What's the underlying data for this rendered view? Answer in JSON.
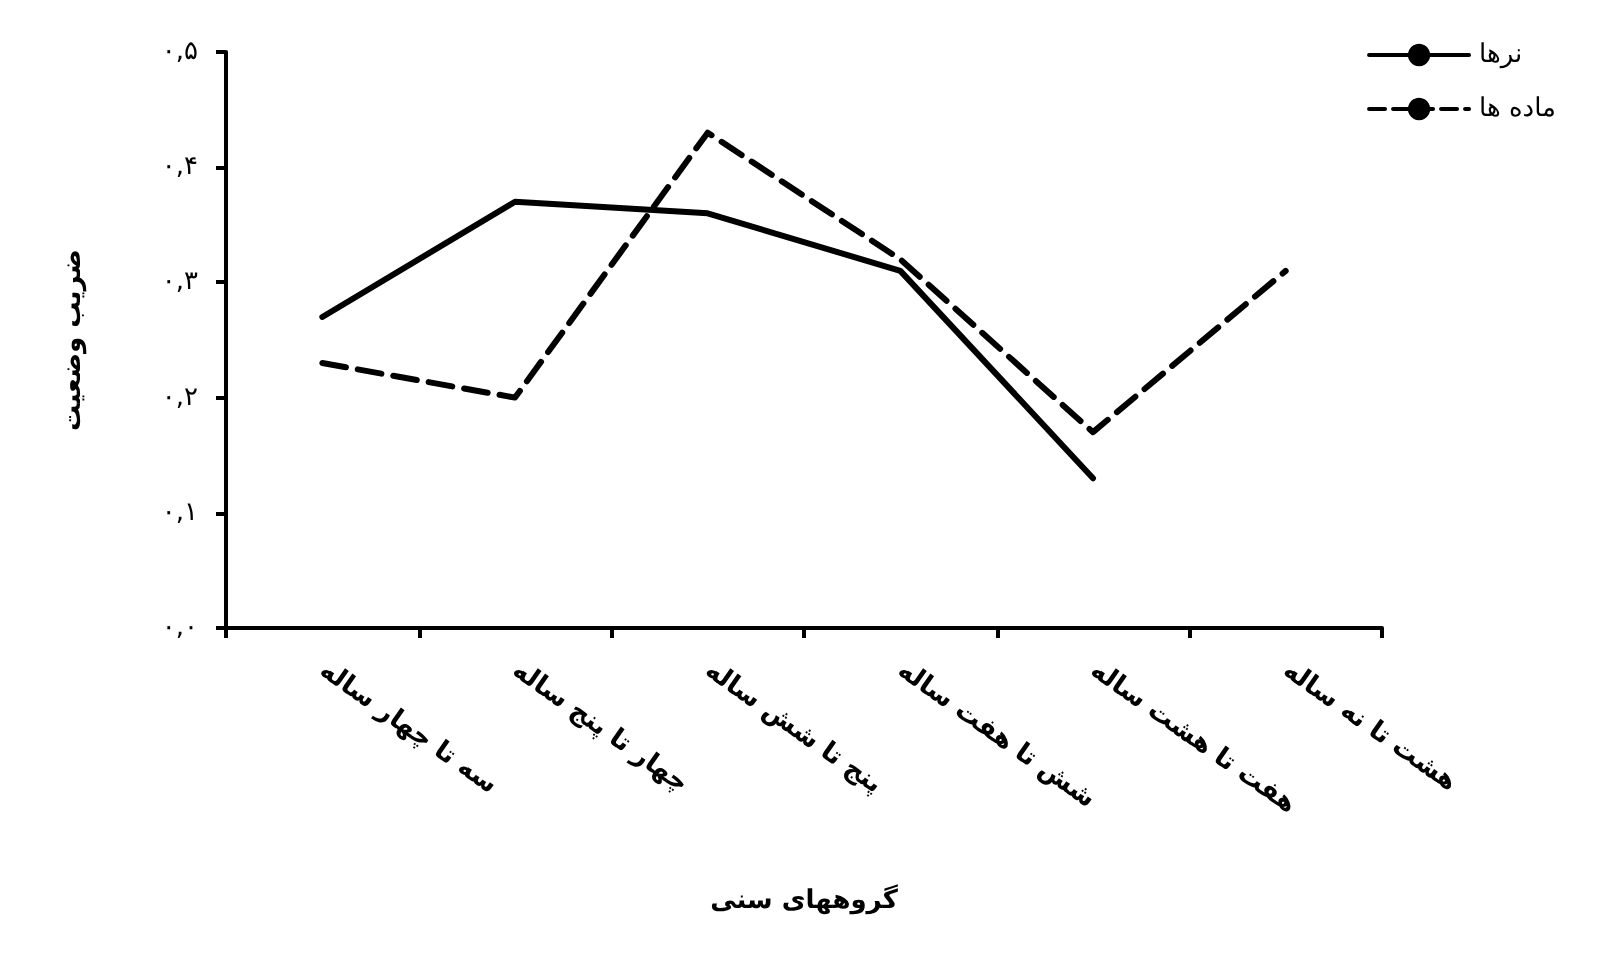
{
  "chart_data": {
    "type": "line",
    "xlabel": "گروههای سنی",
    "ylabel": "ضریب وضعیت",
    "categories": [
      "سه تا چهار ساله",
      "چهار تا پنج ساله",
      "پنج تا شش ساله",
      "شش تا هفت ساله",
      "هفت تا هشت ساله",
      "هشت تا نه ساله"
    ],
    "series": [
      {
        "name": "نرها",
        "color": "#000000",
        "line_style": "solid",
        "values": [
          0.27,
          0.37,
          0.36,
          0.31,
          0.13,
          null
        ]
      },
      {
        "name": "ماده ها",
        "color": "#000000",
        "line_style": "dashed",
        "values": [
          0.23,
          0.2,
          0.43,
          0.32,
          0.17,
          0.31
        ]
      }
    ],
    "ylim": [
      0,
      0.5
    ],
    "yticks": [
      {
        "value": 0,
        "label": "۰,۰"
      },
      {
        "value": 0.1,
        "label": "۰,۱"
      },
      {
        "value": 0.2,
        "label": "۰,۲"
      },
      {
        "value": 0.3,
        "label": "۰,۳"
      },
      {
        "value": 0.4,
        "label": "۰,۴"
      },
      {
        "value": 0.5,
        "label": "۰,۵"
      }
    ],
    "grid": false,
    "legend": "top right",
    "marker": "none"
  }
}
